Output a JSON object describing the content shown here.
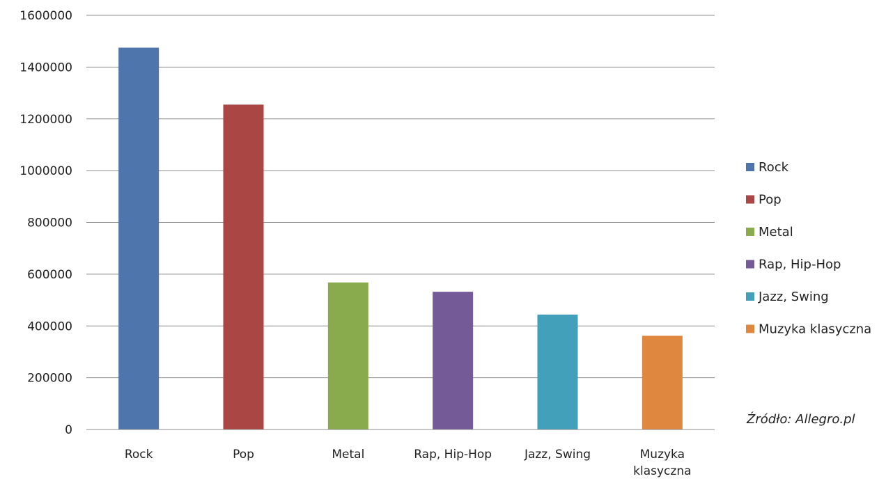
{
  "chart_data": {
    "type": "bar",
    "title": "",
    "xlabel": "",
    "ylabel": "",
    "categories": [
      "Rock",
      "Pop",
      "Metal",
      "Rap, Hip-Hop",
      "Jazz, Swing",
      "Muzyka klasyczna"
    ],
    "values": [
      1475000,
      1255000,
      568000,
      532000,
      444000,
      362000
    ],
    "colors": [
      "#4F75AD",
      "#AA4744",
      "#8AAA4E",
      "#745A97",
      "#42A0BA",
      "#E0873F"
    ],
    "ylim": [
      0,
      1600000
    ],
    "yticks": [
      "0",
      "200000",
      "400000",
      "600000",
      "800000",
      "1000000",
      "1200000",
      "1400000",
      "1600000"
    ],
    "grid": true,
    "legend": {
      "placement": "right",
      "entries": [
        "Rock",
        "Pop",
        "Metal",
        "Rap, Hip-Hop",
        "Jazz, Swing",
        "Muzyka klasyczna"
      ]
    }
  },
  "source_note": "Źródło: Allegro.pl"
}
